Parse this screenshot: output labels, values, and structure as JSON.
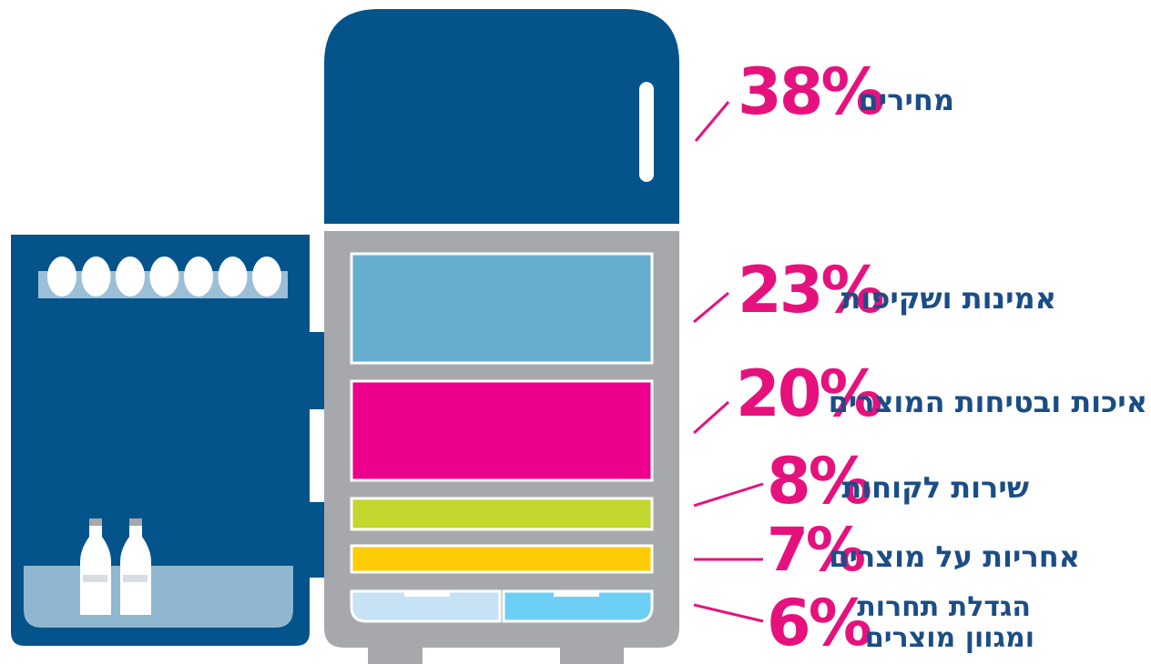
{
  "colors": {
    "navy": "#04538a",
    "gray": "#a7a8ab",
    "magenta": "#e5127d",
    "white": "#ffffff",
    "text": "#1b4d86",
    "shelf1": "#66aecd",
    "shelf2": "#ec008c",
    "shelf3": "#c4d72e",
    "shelf4": "#fecb05",
    "drawer_left": "#c5e3f5",
    "drawer_right": "#6dcff6",
    "tray": "#8fb7d0",
    "egg_rail": "#9cbfd8"
  },
  "chart_data": {
    "type": "bar",
    "categories": [
      "מחירים",
      "אמינות ושקיפות",
      "איכות ובטיחות המוצרים",
      "שירות לקוחות",
      "אחריות על מוצרים",
      "הגדלת תחרות ומגוון מוצרים"
    ],
    "values": [
      38,
      23,
      20,
      8,
      7,
      6
    ],
    "value_labels": [
      "38%",
      "23%",
      "20%",
      "8%",
      "7%",
      "6%"
    ],
    "label_lines": [
      [
        "מחירים"
      ],
      [
        "אמינות ושקיפות"
      ],
      [
        "איכות ובטיחות המוצרים"
      ],
      [
        "שירות לקוחות"
      ],
      [
        "אחריות על מוצרים"
      ],
      [
        "הגדלת תחרות",
        "ומגוון מוצרים"
      ]
    ]
  }
}
